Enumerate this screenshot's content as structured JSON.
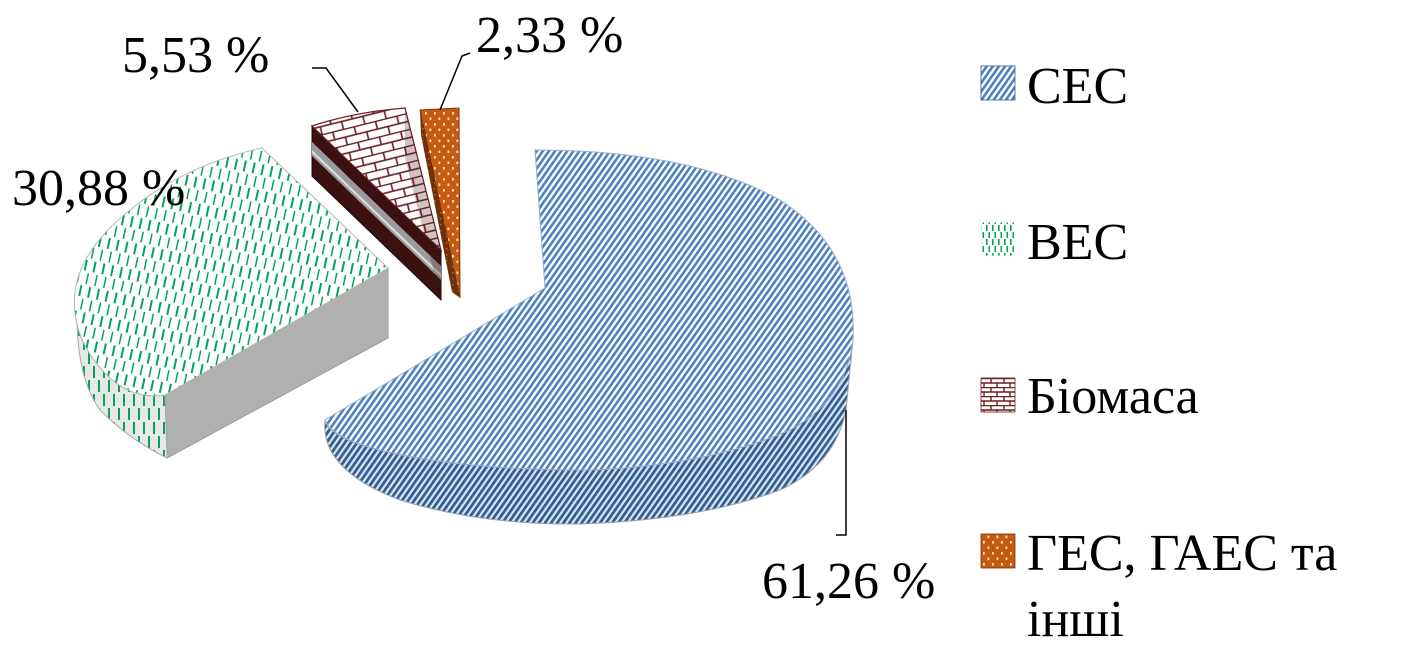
{
  "chart_data": {
    "type": "pie",
    "style": "3d-exploded",
    "title": "",
    "legend_position": "right",
    "slices": [
      {
        "name": "СЕС",
        "value": 61.26,
        "label": "61,26 %",
        "color": "#4f81bd",
        "pattern": "diagonal-stripes"
      },
      {
        "name": "ВЕС",
        "value": 30.88,
        "label": "30,88 %",
        "color": "#00a651",
        "pattern": "vertical-dashes"
      },
      {
        "name": "Біомаса",
        "value": 5.53,
        "label": "5,53 %",
        "color": "#6b1f1f",
        "pattern": "bricks"
      },
      {
        "name": "ГЕС, ГАЕС та інші",
        "value": 2.33,
        "label": "2,33 %",
        "color": "#c55a11",
        "pattern": "dots"
      }
    ]
  }
}
